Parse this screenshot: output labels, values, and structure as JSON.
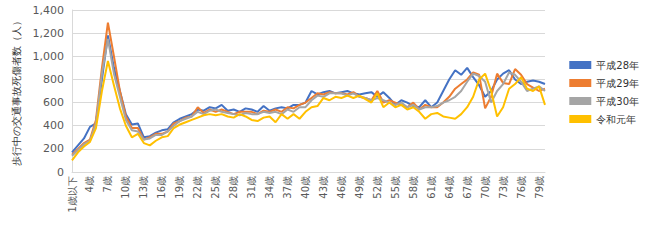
{
  "chart_data": {
    "type": "line",
    "y_label": "歩行中の交通事故死傷者数（人）",
    "categories": [
      "1歳以下",
      null,
      null,
      "4歳",
      null,
      null,
      "7歳",
      null,
      null,
      "10歳",
      null,
      null,
      "13歳",
      null,
      null,
      "16歳",
      null,
      null,
      "19歳",
      null,
      null,
      "22歳",
      null,
      null,
      "25歳",
      null,
      null,
      "28歳",
      null,
      null,
      "31歳",
      null,
      null,
      "34歳",
      null,
      null,
      "37歳",
      null,
      null,
      "40歳",
      null,
      null,
      "43歳",
      null,
      null,
      "46歳",
      null,
      null,
      "49歳",
      null,
      null,
      "52歳",
      null,
      null,
      "55歳",
      null,
      null,
      "58歳",
      null,
      null,
      "61歳",
      null,
      null,
      "64歳",
      null,
      null,
      "67歳",
      null,
      null,
      "70歳",
      null,
      null,
      "73歳",
      null,
      null,
      "76歳",
      null,
      null,
      "79歳",
      null
    ],
    "series": [
      {
        "name": "平成28年",
        "color": "#4472c4",
        "values": [
          170,
          230,
          290,
          390,
          420,
          800,
          1180,
          900,
          700,
          500,
          410,
          420,
          300,
          310,
          340,
          360,
          370,
          430,
          460,
          480,
          500,
          540,
          530,
          560,
          550,
          580,
          530,
          540,
          520,
          550,
          540,
          520,
          570,
          530,
          550,
          560,
          550,
          580,
          580,
          600,
          700,
          670,
          690,
          700,
          680,
          690,
          700,
          680,
          670,
          680,
          690,
          650,
          690,
          640,
          580,
          620,
          600,
          570,
          560,
          620,
          560,
          600,
          700,
          800,
          880,
          840,
          900,
          820,
          750,
          650,
          700,
          800,
          850,
          880,
          800,
          760,
          780,
          790,
          780,
          760
        ]
      },
      {
        "name": "平成29年",
        "color": "#ed7d31",
        "values": [
          150,
          200,
          250,
          280,
          450,
          900,
          1290,
          1000,
          700,
          480,
          380,
          380,
          280,
          300,
          330,
          330,
          350,
          420,
          440,
          470,
          480,
          560,
          510,
          540,
          520,
          540,
          520,
          500,
          520,
          520,
          520,
          500,
          530,
          520,
          540,
          520,
          560,
          550,
          580,
          600,
          640,
          680,
          670,
          690,
          680,
          680,
          670,
          690,
          650,
          640,
          620,
          700,
          600,
          620,
          600,
          580,
          560,
          600,
          540,
          580,
          560,
          560,
          600,
          650,
          720,
          760,
          800,
          860,
          840,
          550,
          650,
          850,
          770,
          760,
          890,
          840,
          760,
          730,
          700,
          720
        ]
      },
      {
        "name": "平成30年",
        "color": "#a5a5a5",
        "values": [
          140,
          190,
          240,
          270,
          420,
          850,
          1150,
          850,
          650,
          450,
          360,
          350,
          280,
          290,
          320,
          320,
          350,
          400,
          440,
          460,
          480,
          520,
          500,
          530,
          540,
          520,
          510,
          500,
          490,
          510,
          500,
          500,
          520,
          510,
          520,
          500,
          540,
          520,
          560,
          560,
          620,
          660,
          650,
          680,
          680,
          680,
          660,
          680,
          650,
          640,
          620,
          640,
          620,
          600,
          580,
          600,
          560,
          580,
          540,
          560,
          560,
          570,
          600,
          620,
          650,
          700,
          780,
          850,
          830,
          780,
          600,
          700,
          760,
          860,
          840,
          780,
          700,
          720,
          740,
          700
        ]
      },
      {
        "name": "令和元年",
        "color": "#ffc000",
        "values": [
          100,
          170,
          220,
          260,
          380,
          700,
          960,
          750,
          550,
          400,
          300,
          330,
          250,
          230,
          270,
          300,
          310,
          380,
          410,
          430,
          450,
          470,
          490,
          500,
          490,
          500,
          480,
          470,
          500,
          480,
          450,
          440,
          470,
          480,
          430,
          500,
          460,
          500,
          460,
          520,
          560,
          570,
          640,
          620,
          650,
          640,
          660,
          640,
          660,
          630,
          600,
          680,
          560,
          600,
          560,
          580,
          540,
          560,
          520,
          460,
          500,
          510,
          480,
          470,
          460,
          500,
          560,
          650,
          800,
          850,
          700,
          480,
          560,
          720,
          760,
          820,
          720,
          700,
          740,
          580
        ]
      }
    ],
    "ylim": [
      0,
      1400
    ],
    "yticks": [
      0,
      200,
      400,
      600,
      800,
      1000,
      1200,
      1400
    ],
    "grid": true,
    "legend": "right"
  }
}
